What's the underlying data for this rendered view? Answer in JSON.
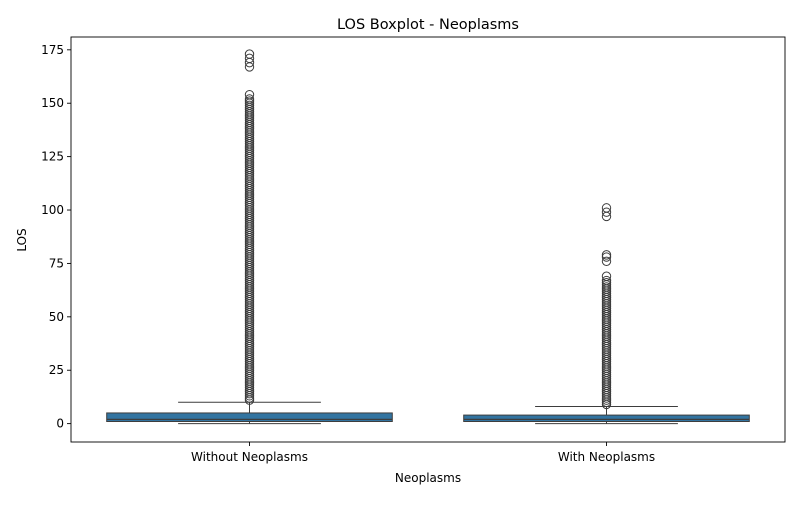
{
  "chart_data": {
    "type": "boxplot",
    "title": "LOS Boxplot - Neoplasms",
    "xlabel": "Neoplasms",
    "ylabel": "LOS",
    "ylim": [
      -8.6,
      181
    ],
    "yticks": [
      0,
      25,
      50,
      75,
      100,
      125,
      150,
      175
    ],
    "grid": false,
    "box_color": "#3274a1",
    "categories": [
      "Without Neoplasms",
      "With Neoplasms"
    ],
    "boxes": [
      {
        "category": "Without Neoplasms",
        "whislo": 0,
        "q1": 1,
        "median": 2,
        "q3": 5,
        "whishi": 10,
        "fliers": [
          11,
          12,
          13,
          14,
          15,
          16,
          17,
          18,
          19,
          20,
          21,
          22,
          23,
          24,
          25,
          26,
          27,
          28,
          29,
          30,
          31,
          32,
          33,
          34,
          35,
          36,
          37,
          38,
          39,
          40,
          41,
          42,
          43,
          44,
          45,
          46,
          47,
          48,
          49,
          50,
          51,
          52,
          53,
          54,
          55,
          56,
          57,
          58,
          59,
          60,
          61,
          62,
          63,
          64,
          65,
          66,
          67,
          68,
          69,
          70,
          71,
          72,
          73,
          74,
          75,
          76,
          77,
          78,
          79,
          80,
          81,
          82,
          83,
          84,
          85,
          86,
          87,
          88,
          89,
          90,
          91,
          92,
          93,
          94,
          95,
          96,
          97,
          98,
          99,
          100,
          101,
          102,
          103,
          104,
          105,
          106,
          107,
          108,
          109,
          110,
          111,
          112,
          113,
          114,
          115,
          116,
          117,
          118,
          119,
          120,
          121,
          122,
          123,
          124,
          125,
          126,
          127,
          128,
          129,
          130,
          131,
          132,
          133,
          134,
          135,
          136,
          137,
          138,
          139,
          140,
          141,
          142,
          143,
          144,
          145,
          146,
          147,
          148,
          149,
          150,
          151,
          152,
          154,
          167,
          169,
          171,
          173
        ]
      },
      {
        "category": "With Neoplasms",
        "whislo": 0,
        "q1": 1,
        "median": 2,
        "q3": 4,
        "whishi": 8,
        "fliers": [
          9,
          10,
          11,
          12,
          13,
          14,
          15,
          16,
          17,
          18,
          19,
          20,
          21,
          22,
          23,
          24,
          25,
          26,
          27,
          28,
          29,
          30,
          31,
          32,
          33,
          34,
          35,
          36,
          37,
          38,
          39,
          40,
          41,
          42,
          43,
          44,
          45,
          46,
          47,
          48,
          49,
          50,
          51,
          52,
          53,
          54,
          55,
          56,
          57,
          58,
          59,
          60,
          61,
          62,
          63,
          64,
          65,
          66,
          67,
          69,
          76,
          78,
          79,
          97,
          99,
          101
        ]
      }
    ]
  }
}
